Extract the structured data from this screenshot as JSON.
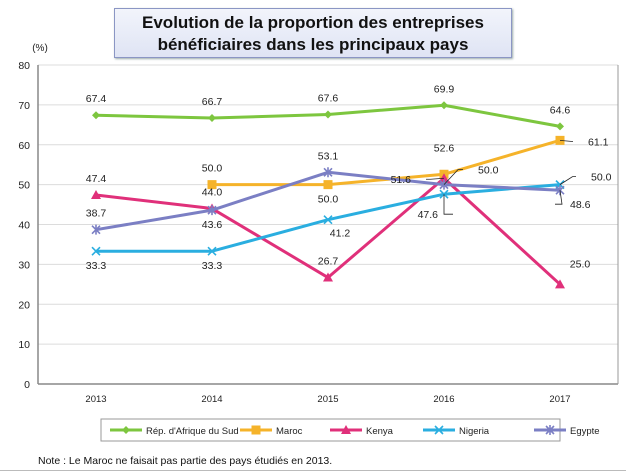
{
  "chart_data": {
    "type": "line",
    "title": "Evolution de la proportion des entreprises bénéficiaires dans les principaux pays",
    "title_lines": [
      "Evolution de la proportion des entreprises",
      "bénéficiaires dans les principaux pays"
    ],
    "ylabel": "(%)",
    "xlabel": "",
    "ylim": [
      0,
      80
    ],
    "yticks": [
      0,
      10,
      20,
      30,
      40,
      50,
      60,
      70,
      80
    ],
    "grid": true,
    "legend_position": "bottom",
    "categories": [
      "2013",
      "2014",
      "2015",
      "2016",
      "2017"
    ],
    "series": [
      {
        "name": "Rép. d'Afrique du Sud",
        "color": "#7dc63f",
        "marker": "diamond",
        "values": [
          67.4,
          66.7,
          67.6,
          69.9,
          64.6
        ]
      },
      {
        "name": "Maroc",
        "color": "#f5b32a",
        "marker": "square",
        "values": [
          null,
          50.0,
          50.0,
          52.6,
          61.1
        ]
      },
      {
        "name": "Kenya",
        "color": "#e0307a",
        "marker": "triangle",
        "values": [
          47.4,
          44.0,
          26.7,
          51.6,
          25.0
        ]
      },
      {
        "name": "Nigeria",
        "color": "#2aaee0",
        "marker": "x",
        "values": [
          33.3,
          33.3,
          41.2,
          47.6,
          50.0
        ]
      },
      {
        "name": "Egypte",
        "color": "#7b7fc4",
        "marker": "asterisk",
        "values": [
          38.7,
          43.6,
          53.1,
          50.0,
          48.6
        ]
      }
    ],
    "note": "Note : Le Maroc ne faisait pas partie des pays étudiés en 2013."
  }
}
